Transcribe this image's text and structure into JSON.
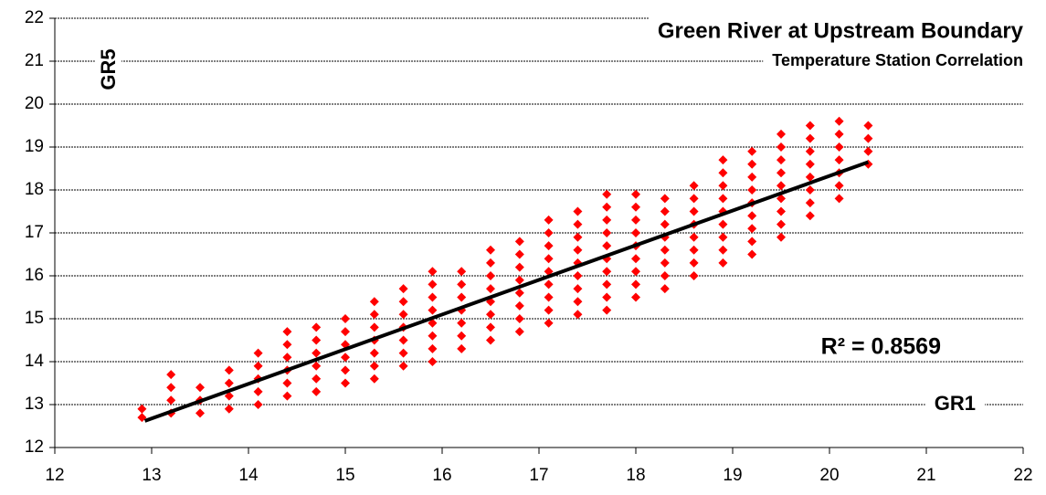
{
  "chart_data": {
    "type": "scatter",
    "title": "Green River at Upstream Boundary",
    "subtitle": "Temperature Station Correlation",
    "x_label": "GR1",
    "y_label": "GR5",
    "annotation": "R² = 0.8569",
    "xlim": [
      12,
      22
    ],
    "xticks": [
      12,
      13,
      14,
      15,
      16,
      17,
      18,
      19,
      20,
      21,
      22
    ],
    "ylim": [
      12,
      22
    ],
    "yticks": [
      12,
      13,
      14,
      15,
      16,
      17,
      18,
      19,
      20,
      21,
      22
    ],
    "grid": true,
    "series": [
      {
        "color": "#ff0000",
        "x": [
          12.9,
          12.9,
          13.2,
          13.2,
          13.2,
          13.2,
          13.5,
          13.5,
          13.5,
          13.8,
          13.8,
          13.8,
          13.8,
          14.1,
          14.1,
          14.1,
          14.1,
          14.1,
          14.4,
          14.4,
          14.4,
          14.4,
          14.4,
          14.4,
          14.7,
          14.7,
          14.7,
          14.7,
          14.7,
          14.7,
          15.0,
          15.0,
          15.0,
          15.0,
          15.0,
          15.0,
          15.3,
          15.3,
          15.3,
          15.3,
          15.3,
          15.3,
          15.3,
          15.6,
          15.6,
          15.6,
          15.6,
          15.6,
          15.6,
          15.6,
          15.9,
          15.9,
          15.9,
          15.9,
          15.9,
          15.9,
          15.9,
          15.9,
          16.2,
          16.2,
          16.2,
          16.2,
          16.2,
          16.2,
          16.2,
          16.5,
          16.5,
          16.5,
          16.5,
          16.5,
          16.5,
          16.5,
          16.5,
          16.8,
          16.8,
          16.8,
          16.8,
          16.8,
          16.8,
          16.8,
          16.8,
          17.1,
          17.1,
          17.1,
          17.1,
          17.1,
          17.1,
          17.1,
          17.1,
          17.1,
          17.4,
          17.4,
          17.4,
          17.4,
          17.4,
          17.4,
          17.4,
          17.4,
          17.4,
          17.7,
          17.7,
          17.7,
          17.7,
          17.7,
          17.7,
          17.7,
          17.7,
          17.7,
          17.7,
          18.0,
          18.0,
          18.0,
          18.0,
          18.0,
          18.0,
          18.0,
          18.0,
          18.0,
          18.3,
          18.3,
          18.3,
          18.3,
          18.3,
          18.3,
          18.3,
          18.3,
          18.6,
          18.6,
          18.6,
          18.6,
          18.6,
          18.6,
          18.6,
          18.6,
          18.9,
          18.9,
          18.9,
          18.9,
          18.9,
          18.9,
          18.9,
          18.9,
          18.9,
          19.2,
          19.2,
          19.2,
          19.2,
          19.2,
          19.2,
          19.2,
          19.2,
          19.2,
          19.5,
          19.5,
          19.5,
          19.5,
          19.5,
          19.5,
          19.5,
          19.5,
          19.5,
          19.8,
          19.8,
          19.8,
          19.8,
          19.8,
          19.8,
          19.8,
          19.8,
          20.1,
          20.1,
          20.1,
          20.1,
          20.1,
          20.1,
          20.1,
          20.4,
          20.4,
          20.4,
          20.4
        ],
        "values": [
          12.7,
          12.9,
          12.8,
          13.1,
          13.4,
          13.7,
          12.8,
          13.1,
          13.4,
          12.9,
          13.2,
          13.5,
          13.8,
          13.0,
          13.3,
          13.6,
          13.9,
          14.2,
          13.2,
          13.5,
          13.8,
          14.1,
          14.4,
          14.7,
          13.3,
          13.6,
          13.9,
          14.2,
          14.5,
          14.8,
          13.5,
          13.8,
          14.1,
          14.4,
          14.7,
          15.0,
          13.6,
          13.9,
          14.2,
          14.5,
          14.8,
          15.1,
          15.4,
          13.9,
          14.2,
          14.5,
          14.8,
          15.1,
          15.4,
          15.7,
          14.0,
          14.3,
          14.6,
          14.9,
          15.2,
          15.5,
          15.8,
          16.1,
          14.3,
          14.6,
          14.9,
          15.2,
          15.5,
          15.8,
          16.1,
          14.5,
          14.8,
          15.1,
          15.4,
          15.7,
          16.0,
          16.3,
          16.6,
          14.7,
          15.0,
          15.3,
          15.6,
          15.9,
          16.2,
          16.5,
          16.8,
          14.9,
          15.2,
          15.5,
          15.8,
          16.1,
          16.4,
          16.7,
          17.0,
          17.3,
          15.1,
          15.4,
          15.7,
          16.0,
          16.3,
          16.6,
          16.9,
          17.2,
          17.5,
          15.2,
          15.5,
          15.8,
          16.1,
          16.4,
          16.7,
          17.0,
          17.3,
          17.6,
          17.9,
          15.5,
          15.8,
          16.1,
          16.4,
          16.7,
          17.0,
          17.3,
          17.6,
          17.9,
          15.7,
          16.0,
          16.3,
          16.6,
          16.9,
          17.2,
          17.5,
          17.8,
          16.0,
          16.3,
          16.6,
          16.9,
          17.2,
          17.5,
          17.8,
          18.1,
          16.3,
          16.6,
          16.9,
          17.2,
          17.5,
          17.8,
          18.1,
          18.4,
          18.7,
          16.5,
          16.8,
          17.1,
          17.4,
          17.7,
          18.0,
          18.3,
          18.6,
          18.9,
          16.9,
          17.2,
          17.5,
          17.8,
          18.1,
          18.4,
          18.7,
          19.0,
          19.3,
          17.4,
          17.7,
          18.0,
          18.3,
          18.6,
          18.9,
          19.2,
          19.5,
          17.8,
          18.1,
          18.4,
          18.7,
          19.0,
          19.3,
          19.6,
          18.6,
          18.9,
          19.2,
          19.5
        ]
      }
    ],
    "trendline": {
      "color": "#000000",
      "x": [
        12.93,
        20.4
      ],
      "values": [
        12.62,
        18.65
      ]
    }
  }
}
